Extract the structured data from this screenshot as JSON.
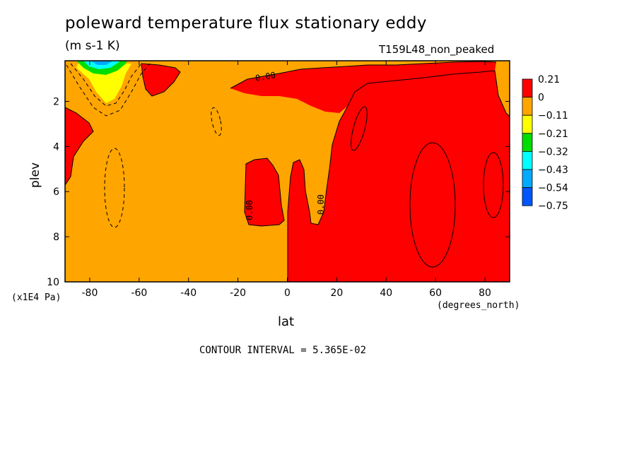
{
  "chart_data": {
    "type": "heatmap",
    "title": "poleward temperature flux stationary eddy",
    "units": "(m s-1 K)",
    "run_label": "T159L48_non_peaked",
    "xlabel": "lat",
    "x_units": "(degrees_north)",
    "ylabel": "plev",
    "y_scale_label": "(x1E4 Pa)",
    "x_ticks": [
      -80,
      -60,
      -40,
      -20,
      0,
      20,
      40,
      60,
      80
    ],
    "y_ticks": [
      2,
      4,
      6,
      8,
      10
    ],
    "xlim": [
      -90,
      90
    ],
    "ylim": [
      0.2,
      10
    ],
    "y_inverted": true,
    "contour_interval_text": "CONTOUR INTERVAL = 5.365E-02",
    "contour_labels": [
      "0.00",
      "0.00",
      "0.00"
    ],
    "colorbar": {
      "labels": [
        "0.21",
        "0",
        "−0.11",
        "−0.21",
        "−0.32",
        "−0.43",
        "−0.54",
        "−0.75"
      ],
      "colors": [
        "#ff0000",
        "#ffa500",
        "#ffff00",
        "#00dd00",
        "#00ffff",
        "#00aaff",
        "#0055ff"
      ]
    },
    "regions": [
      {
        "color": "#ffa500",
        "description": "negative flux, most of southern hemisphere and northern tropics"
      },
      {
        "color": "#ff0000",
        "description": "positive flux, northern hemisphere 5-90N"
      },
      {
        "color": "#ffff00",
        "description": "weak negative core near 72S upper levels"
      },
      {
        "color": "#00dd00",
        "description": "strong negative core near 75S top"
      }
    ]
  }
}
